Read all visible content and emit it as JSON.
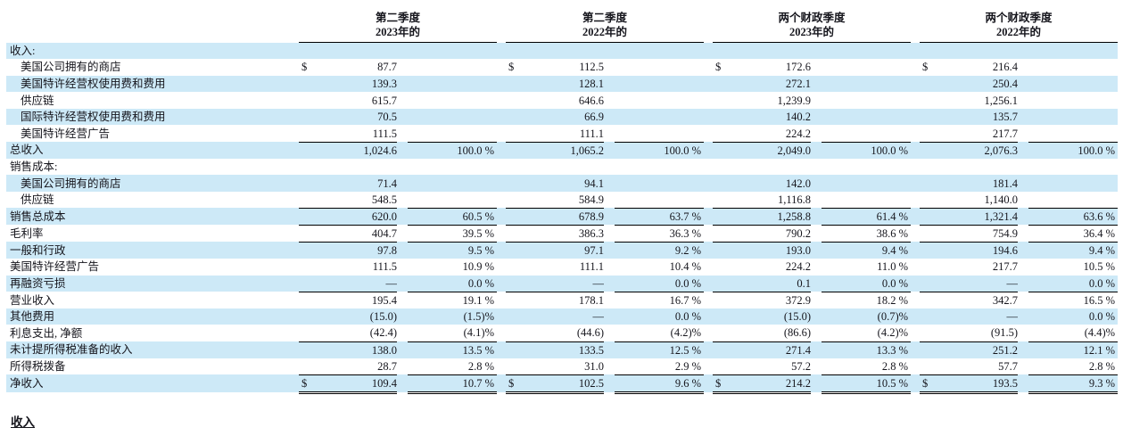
{
  "colors": {
    "band_blue": "#cde9f7",
    "rule_black": "#000000"
  },
  "footer_heading": "收入",
  "table": {
    "col_groups": [
      {
        "line1": "第二季度",
        "line2": "2023年的"
      },
      {
        "line1": "第二季度",
        "line2": "2022年的"
      },
      {
        "line1": "两个财政季度",
        "line2": "2023年的"
      },
      {
        "line1": "两个财政季度",
        "line2": "2022年的"
      }
    ],
    "rows": [
      {
        "label": "收入:",
        "indent": false,
        "rule": "none"
      },
      {
        "label": "美国公司拥有的商店",
        "indent": true,
        "rule": "none",
        "cells": [
          {
            "sym": "$",
            "val": "87.7",
            "pct": ""
          },
          {
            "sym": "$",
            "val": "112.5",
            "pct": ""
          },
          {
            "sym": "$",
            "val": "172.6",
            "pct": ""
          },
          {
            "sym": "$",
            "val": "216.4",
            "pct": ""
          }
        ]
      },
      {
        "label": "美国特许经营权使用费和费用",
        "indent": true,
        "rule": "none",
        "cells": [
          {
            "sym": "",
            "val": "139.3",
            "pct": ""
          },
          {
            "sym": "",
            "val": "128.1",
            "pct": ""
          },
          {
            "sym": "",
            "val": "272.1",
            "pct": ""
          },
          {
            "sym": "",
            "val": "250.4",
            "pct": ""
          }
        ]
      },
      {
        "label": "供应链",
        "indent": true,
        "rule": "none",
        "cells": [
          {
            "sym": "",
            "val": "615.7",
            "pct": ""
          },
          {
            "sym": "",
            "val": "646.6",
            "pct": ""
          },
          {
            "sym": "",
            "val": "1,239.9",
            "pct": ""
          },
          {
            "sym": "",
            "val": "1,256.1",
            "pct": ""
          }
        ]
      },
      {
        "label": "国际特许经营权使用费和费用",
        "indent": true,
        "rule": "none",
        "cells": [
          {
            "sym": "",
            "val": "70.5",
            "pct": ""
          },
          {
            "sym": "",
            "val": "66.9",
            "pct": ""
          },
          {
            "sym": "",
            "val": "140.2",
            "pct": ""
          },
          {
            "sym": "",
            "val": "135.7",
            "pct": ""
          }
        ]
      },
      {
        "label": "美国特许经营广告",
        "indent": true,
        "rule": "s",
        "cells": [
          {
            "sym": "",
            "val": "111.5",
            "pct": ""
          },
          {
            "sym": "",
            "val": "111.1",
            "pct": ""
          },
          {
            "sym": "",
            "val": "224.2",
            "pct": ""
          },
          {
            "sym": "",
            "val": "217.7",
            "pct": ""
          }
        ]
      },
      {
        "label": "总收入",
        "indent": false,
        "rule": "none",
        "cells": [
          {
            "sym": "",
            "val": "1,024.6",
            "pct": "100.0 %"
          },
          {
            "sym": "",
            "val": "1,065.2",
            "pct": "100.0 %"
          },
          {
            "sym": "",
            "val": "2,049.0",
            "pct": "100.0 %"
          },
          {
            "sym": "",
            "val": "2,076.3",
            "pct": "100.0 %"
          }
        ]
      },
      {
        "label": "销售成本:",
        "indent": false,
        "rule": "none"
      },
      {
        "label": "美国公司拥有的商店",
        "indent": true,
        "rule": "none",
        "cells": [
          {
            "sym": "",
            "val": "71.4",
            "pct": ""
          },
          {
            "sym": "",
            "val": "94.1",
            "pct": ""
          },
          {
            "sym": "",
            "val": "142.0",
            "pct": ""
          },
          {
            "sym": "",
            "val": "181.4",
            "pct": ""
          }
        ]
      },
      {
        "label": "供应链",
        "indent": true,
        "rule": "s",
        "cells": [
          {
            "sym": "",
            "val": "548.5",
            "pct": ""
          },
          {
            "sym": "",
            "val": "584.9",
            "pct": ""
          },
          {
            "sym": "",
            "val": "1,116.8",
            "pct": ""
          },
          {
            "sym": "",
            "val": "1,140.0",
            "pct": ""
          }
        ]
      },
      {
        "label": "销售总成本",
        "indent": false,
        "rule": "s",
        "cells": [
          {
            "sym": "",
            "val": "620.0",
            "pct": "60.5 %"
          },
          {
            "sym": "",
            "val": "678.9",
            "pct": "63.7 %"
          },
          {
            "sym": "",
            "val": "1,258.8",
            "pct": "61.4 %"
          },
          {
            "sym": "",
            "val": "1,321.4",
            "pct": "63.6 %"
          }
        ]
      },
      {
        "label": "毛利率",
        "indent": false,
        "rule": "s",
        "cells": [
          {
            "sym": "",
            "val": "404.7",
            "pct": "39.5 %"
          },
          {
            "sym": "",
            "val": "386.3",
            "pct": "36.3 %"
          },
          {
            "sym": "",
            "val": "790.2",
            "pct": "38.6 %"
          },
          {
            "sym": "",
            "val": "754.9",
            "pct": "36.4 %"
          }
        ]
      },
      {
        "label": "一般和行政",
        "indent": false,
        "rule": "none",
        "cells": [
          {
            "sym": "",
            "val": "97.8",
            "pct": "9.5 %"
          },
          {
            "sym": "",
            "val": "97.1",
            "pct": "9.2 %"
          },
          {
            "sym": "",
            "val": "193.0",
            "pct": "9.4 %"
          },
          {
            "sym": "",
            "val": "194.6",
            "pct": "9.4 %"
          }
        ]
      },
      {
        "label": "美国特许经营广告",
        "indent": false,
        "rule": "none",
        "cells": [
          {
            "sym": "",
            "val": "111.5",
            "pct": "10.9 %"
          },
          {
            "sym": "",
            "val": "111.1",
            "pct": "10.4 %"
          },
          {
            "sym": "",
            "val": "224.2",
            "pct": "11.0 %"
          },
          {
            "sym": "",
            "val": "217.7",
            "pct": "10.5 %"
          }
        ]
      },
      {
        "label": "再融资亏损",
        "indent": false,
        "rule": "s",
        "cells": [
          {
            "sym": "",
            "val": "—",
            "pct": "0.0 %"
          },
          {
            "sym": "",
            "val": "—",
            "pct": "0.0 %"
          },
          {
            "sym": "",
            "val": "0.1",
            "pct": "0.0 %"
          },
          {
            "sym": "",
            "val": "—",
            "pct": "0.0 %"
          }
        ]
      },
      {
        "label": "营业收入",
        "indent": false,
        "rule": "none",
        "cells": [
          {
            "sym": "",
            "val": "195.4",
            "pct": "19.1 %"
          },
          {
            "sym": "",
            "val": "178.1",
            "pct": "16.7 %"
          },
          {
            "sym": "",
            "val": "372.9",
            "pct": "18.2 %"
          },
          {
            "sym": "",
            "val": "342.7",
            "pct": "16.5 %"
          }
        ]
      },
      {
        "label": "其他费用",
        "indent": false,
        "rule": "none",
        "cells": [
          {
            "sym": "",
            "val": "(15.0)",
            "pct": "(1.5)%"
          },
          {
            "sym": "",
            "val": "—",
            "pct": "0.0 %"
          },
          {
            "sym": "",
            "val": "(15.0)",
            "pct": "(0.7)%"
          },
          {
            "sym": "",
            "val": "—",
            "pct": "0.0 %"
          }
        ]
      },
      {
        "label": "利息支出, 净额",
        "indent": false,
        "rule": "s",
        "cells": [
          {
            "sym": "",
            "val": "(42.4)",
            "pct": "(4.1)%"
          },
          {
            "sym": "",
            "val": "(44.6)",
            "pct": "(4.2)%"
          },
          {
            "sym": "",
            "val": "(86.6)",
            "pct": "(4.2)%"
          },
          {
            "sym": "",
            "val": "(91.5)",
            "pct": "(4.4)%"
          }
        ]
      },
      {
        "label": "未计提所得税准备的收入",
        "indent": false,
        "rule": "none",
        "cells": [
          {
            "sym": "",
            "val": "138.0",
            "pct": "13.5 %"
          },
          {
            "sym": "",
            "val": "133.5",
            "pct": "12.5 %"
          },
          {
            "sym": "",
            "val": "271.4",
            "pct": "13.3 %"
          },
          {
            "sym": "",
            "val": "251.2",
            "pct": "12.1 %"
          }
        ]
      },
      {
        "label": "所得税拨备",
        "indent": false,
        "rule": "s",
        "cells": [
          {
            "sym": "",
            "val": "28.7",
            "pct": "2.8 %"
          },
          {
            "sym": "",
            "val": "31.0",
            "pct": "2.9 %"
          },
          {
            "sym": "",
            "val": "57.2",
            "pct": "2.8 %"
          },
          {
            "sym": "",
            "val": "57.7",
            "pct": "2.8 %"
          }
        ]
      },
      {
        "label": "净收入",
        "indent": false,
        "rule": "d",
        "cells": [
          {
            "sym": "$",
            "val": "109.4",
            "pct": "10.7 %"
          },
          {
            "sym": "$",
            "val": "102.5",
            "pct": "9.6 %"
          },
          {
            "sym": "$",
            "val": "214.2",
            "pct": "10.5 %"
          },
          {
            "sym": "$",
            "val": "193.5",
            "pct": "9.3 %"
          }
        ]
      }
    ]
  }
}
